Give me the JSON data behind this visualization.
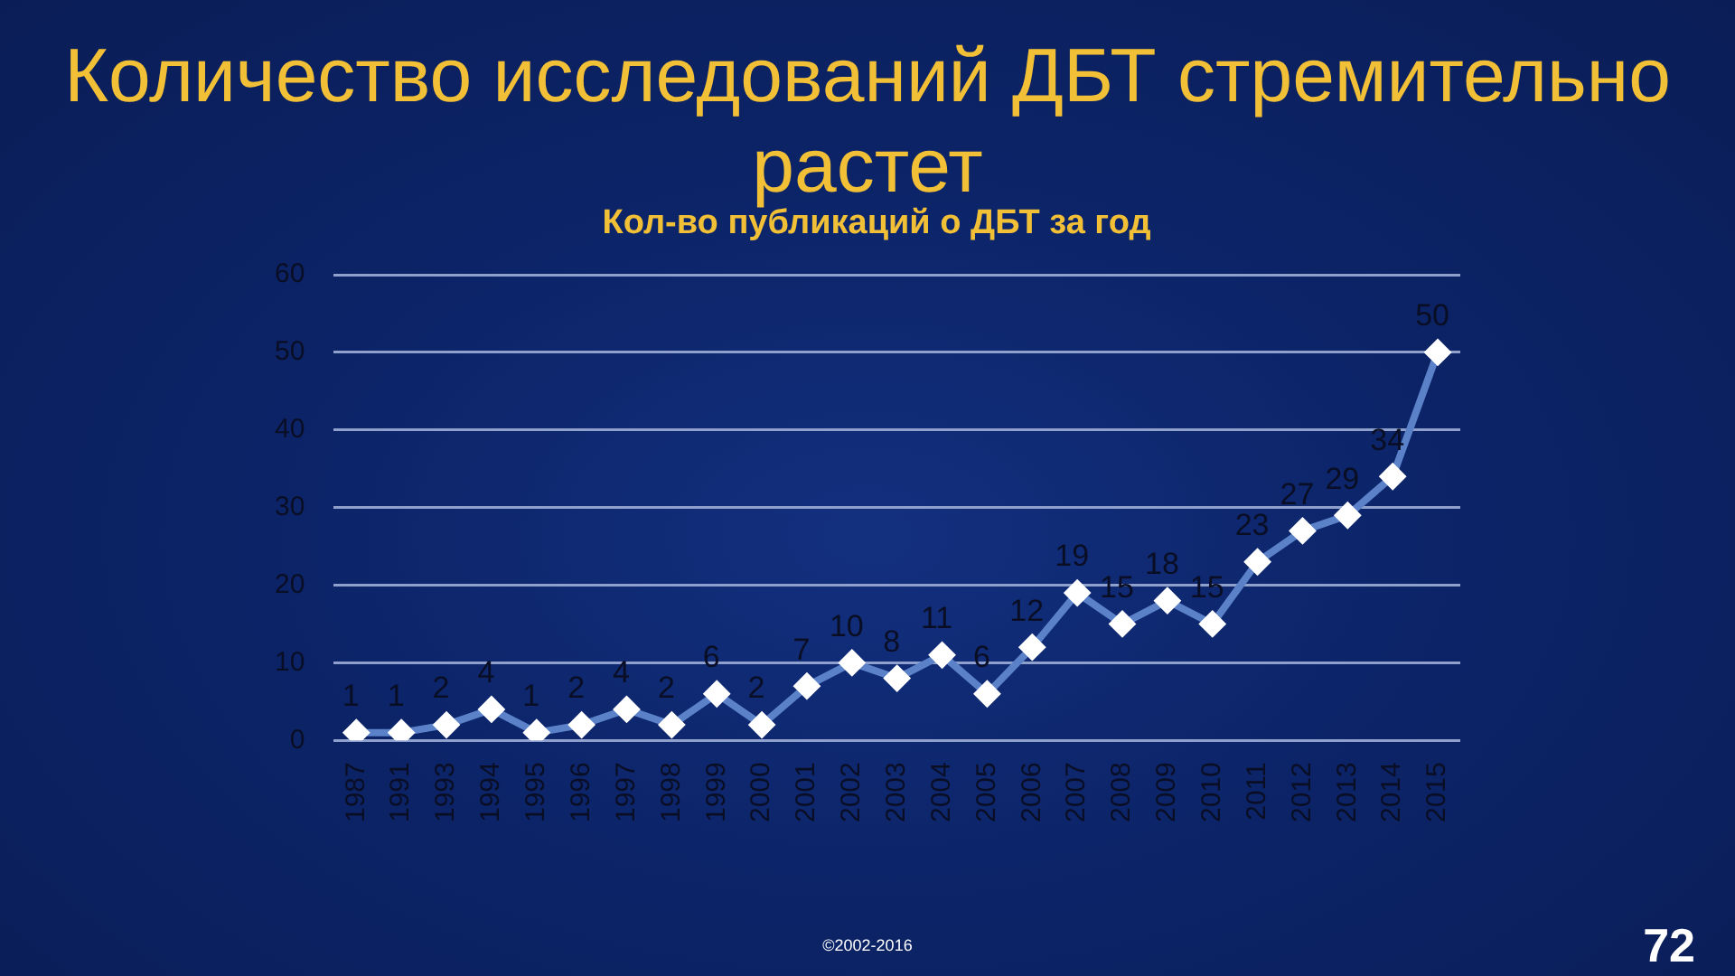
{
  "chart_data": {
    "type": "line",
    "title": "Количество исследований ДБТ стремительно растет",
    "subtitle": "Кол-во публикаций о ДБТ за год",
    "categories": [
      "1987",
      "1991",
      "1993",
      "1994",
      "1995",
      "1996",
      "1997",
      "1998",
      "1999",
      "2000",
      "2001",
      "2002",
      "2003",
      "2004",
      "2005",
      "2006",
      "2007",
      "2008",
      "2009",
      "2010",
      "2011",
      "2012",
      "2013",
      "2014",
      "2015"
    ],
    "values": [
      1,
      1,
      2,
      4,
      1,
      2,
      4,
      2,
      6,
      2,
      7,
      10,
      8,
      11,
      6,
      12,
      19,
      15,
      18,
      15,
      23,
      27,
      29,
      34,
      50
    ],
    "color": "#5b82c9",
    "ylim": [
      0,
      60
    ],
    "yticks": [
      0,
      10,
      20,
      30,
      40,
      50,
      60
    ],
    "grid": "y",
    "legend": false,
    "marker": "diamond",
    "line_style": "solid",
    "data_labels": true,
    "annotations": [
      "©2002-2016",
      "72"
    ]
  }
}
